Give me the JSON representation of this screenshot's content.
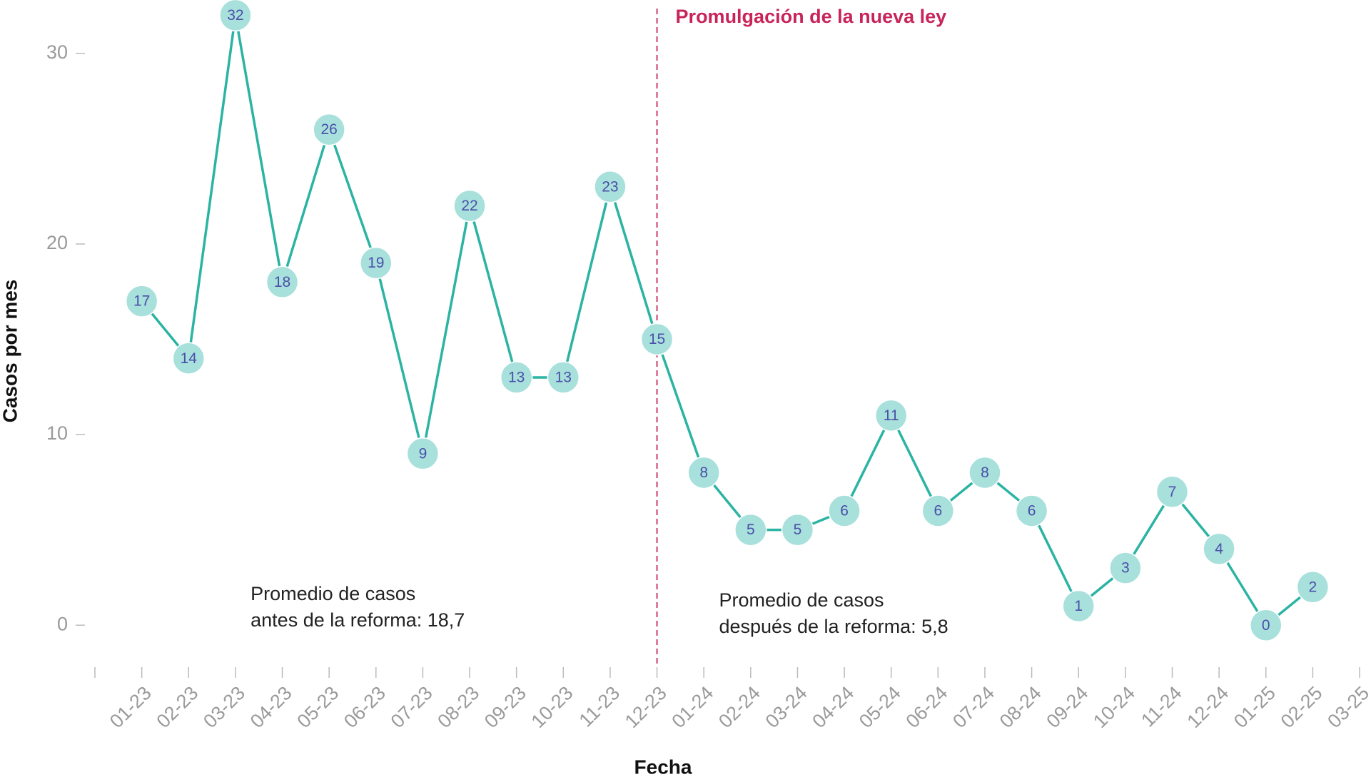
{
  "chart_data": {
    "type": "line",
    "x_label": "Fecha",
    "y_label": "Casos por mes",
    "categories": [
      null,
      "01-23",
      "02-23",
      "03-23",
      "04-23",
      "05-23",
      "06-23",
      "07-23",
      "08-23",
      "09-23",
      "10-23",
      "11-23",
      "12-23",
      "01-24",
      "02-24",
      "03-24",
      "04-24",
      "05-24",
      "06-24",
      "07-24",
      "08-24",
      "09-24",
      "10-24",
      "11-24",
      "12-24",
      "01-25",
      "02-25",
      "03-25"
    ],
    "series": [
      {
        "name": "Casos",
        "color": "#2bb3a3",
        "marker_color": "#a8e0dc",
        "label_color": "#4a4fa8",
        "values": [
          null,
          17,
          14,
          32,
          18,
          26,
          19,
          9,
          22,
          13,
          13,
          23,
          15,
          8,
          5,
          5,
          6,
          11,
          6,
          8,
          6,
          1,
          3,
          7,
          4,
          0,
          2,
          null
        ]
      }
    ],
    "ylim": [
      -2.2,
      32.8
    ],
    "yticks": [
      0,
      10,
      20,
      30
    ],
    "vline": {
      "category": "12-23",
      "text": "Promulgación de la nueva ley",
      "color": "#c8245a"
    },
    "annotations": [
      {
        "lines": [
          "Promedio de casos",
          "antes de la reforma: 18,7"
        ],
        "category": "05-23"
      },
      {
        "lines": [
          "Promedio de casos",
          "después de la reforma: 5,8"
        ],
        "category": "03-24"
      }
    ]
  }
}
